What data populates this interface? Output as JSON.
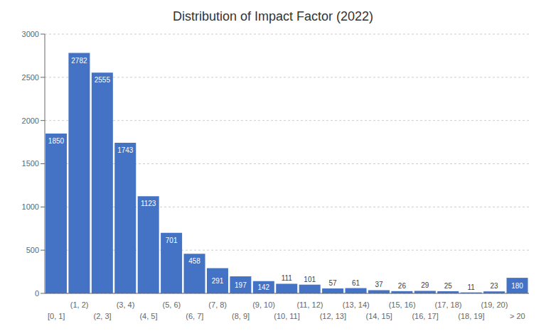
{
  "chart_data": {
    "type": "bar",
    "title": "Distribution of Impact Factor (2022)",
    "categories": [
      "[0, 1]",
      "(1, 2)",
      "(2, 3]",
      "(3, 4)",
      "(4, 5]",
      "(5, 6)",
      "(6, 7]",
      "(7, 8)",
      "(8, 9]",
      "(9, 10)",
      "(10, 11]",
      "(11, 12)",
      "(12, 13]",
      "(13, 14)",
      "(14, 15]",
      "(15, 16)",
      "(16, 17]",
      "(17, 18)",
      "(18, 19]",
      "(19, 20)",
      "> 20"
    ],
    "values": [
      1850,
      2782,
      2555,
      1743,
      1123,
      701,
      458,
      291,
      197,
      142,
      111,
      101,
      57,
      61,
      37,
      26,
      29,
      25,
      11,
      23,
      180
    ],
    "color": "#4472C4",
    "ylim": [
      0,
      3000
    ],
    "yticks": [
      0,
      500,
      1000,
      1500,
      2000,
      2500,
      3000
    ],
    "grid": true,
    "data_labels": true
  }
}
